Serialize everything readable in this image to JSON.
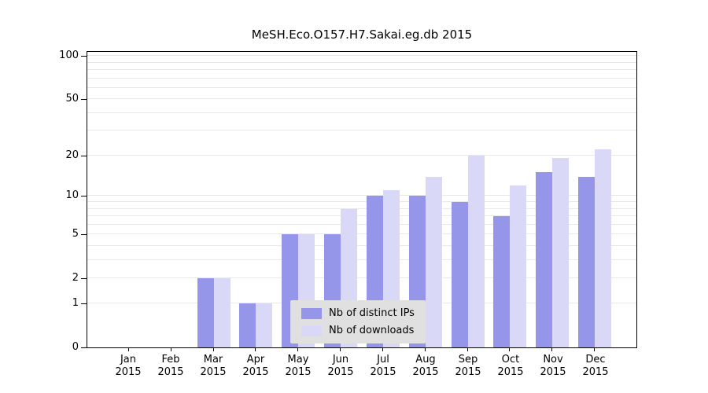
{
  "title": "MeSH.Eco.O157.H7.Sakai.eg.db 2015",
  "colors": {
    "ips": "#9595ea",
    "downloads": "#d9d9f7",
    "grid": "#e8e8e8",
    "axis": "#000000",
    "legend_bg": "#e0e0e0"
  },
  "legend": {
    "items": [
      {
        "label": "Nb of distinct IPs",
        "color_key": "ips"
      },
      {
        "label": "Nb of downloads",
        "color_key": "downloads"
      }
    ]
  },
  "chart_data": {
    "type": "bar",
    "title": "MeSH.Eco.O157.H7.Sakai.eg.db 2015",
    "categories": [
      {
        "month": "Jan",
        "year": "2015"
      },
      {
        "month": "Feb",
        "year": "2015"
      },
      {
        "month": "Mar",
        "year": "2015"
      },
      {
        "month": "Apr",
        "year": "2015"
      },
      {
        "month": "May",
        "year": "2015"
      },
      {
        "month": "Jun",
        "year": "2015"
      },
      {
        "month": "Jul",
        "year": "2015"
      },
      {
        "month": "Aug",
        "year": "2015"
      },
      {
        "month": "Sep",
        "year": "2015"
      },
      {
        "month": "Oct",
        "year": "2015"
      },
      {
        "month": "Nov",
        "year": "2015"
      },
      {
        "month": "Dec",
        "year": "2015"
      }
    ],
    "series": [
      {
        "name": "Nb of distinct IPs",
        "values": [
          0,
          0,
          2,
          1,
          5,
          5,
          10,
          10,
          9,
          7,
          15,
          14
        ]
      },
      {
        "name": "Nb of downloads",
        "values": [
          0,
          0,
          2,
          1,
          5,
          8,
          11,
          14,
          20,
          12,
          19,
          22
        ]
      }
    ],
    "y_ticks": [
      0,
      1,
      2,
      5,
      10,
      20,
      50,
      100
    ],
    "y_scale": "log1p",
    "ylim": [
      0,
      107
    ],
    "grid_values": [
      1,
      2,
      3,
      4,
      5,
      6,
      7,
      8,
      9,
      10,
      20,
      30,
      40,
      50,
      60,
      70,
      80,
      90,
      100
    ],
    "grid": true,
    "legend_position": "inside-bottom-center"
  }
}
